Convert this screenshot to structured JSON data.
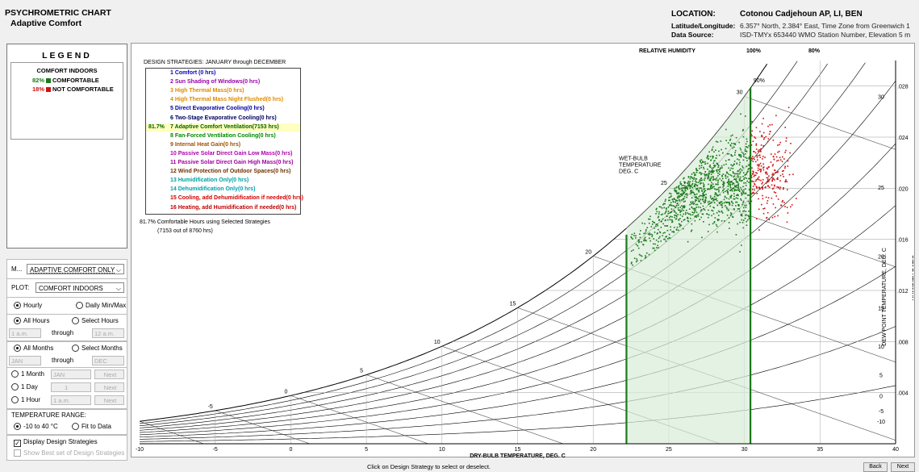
{
  "header": {
    "title": "PSYCHROMETRIC CHART",
    "subtitle": "Adaptive Comfort",
    "location_label": "LOCATION:",
    "location_value": "Cotonou Cadjehoun AP, LI, BEN",
    "latlon_label": "Latitude/Longitude:",
    "latlon_value": "6.357° North, 2.384° East, Time Zone from Greenwich 1",
    "source_label": "Data Source:",
    "source_value": "ISD-TMYx   653440 WMO Station Number, Elevation 5 m"
  },
  "legend": {
    "title": "LEGEND",
    "plot_title": "COMFORT INDOORS",
    "comfortable_pct": "82%",
    "comfortable_label": "COMFORTABLE",
    "not_comfortable_pct": "18%",
    "not_comfortable_label": "NOT COMFORTABLE",
    "colors": {
      "comfortable": "#1a7a1a",
      "not_comfortable": "#d01010"
    }
  },
  "controls": {
    "mode_label": "M...",
    "mode_value": "ADAPTIVE COMFORT ONLY",
    "plot_label": "PLOT:",
    "plot_value": "COMFORT INDOORS",
    "hourly": "Hourly",
    "daily": "Daily Min/Max",
    "all_hours": "All Hours",
    "select_hours": "Select Hours",
    "hour_from": "1 a.m.",
    "through": "through",
    "hour_to": "12 a.m.",
    "all_months": "All Months",
    "select_months": "Select Months",
    "month_from": "JAN",
    "month_to": "DEC",
    "one_month": "1 Month",
    "one_month_value": "JAN",
    "one_day": "1 Day",
    "one_day_value": "1",
    "one_hour": "1 Hour",
    "one_hour_value": "1 a.m.",
    "next": "Next",
    "temp_range_label": "TEMPERATURE RANGE:",
    "temp_range_value": "-10 to 40 °C",
    "fit_to_data": "Fit to Data",
    "display_strategies": "Display Design Strategies",
    "show_best": "Show Best set of Design Strategies"
  },
  "strategies": {
    "header": "DESIGN STRATEGIES:  JANUARY through DECEMBER",
    "items": [
      {
        "label": "1 Comfort (0 hrs)",
        "color": "#0000c0",
        "pct": ""
      },
      {
        "label": "2 Sun Shading of Windows(0 hrs)",
        "color": "#9900aa",
        "pct": ""
      },
      {
        "label": "3 High Thermal Mass(0 hrs)",
        "color": "#e08a00",
        "pct": ""
      },
      {
        "label": "4 High Thermal Mass Night Flushed(0 hrs)",
        "color": "#e08a00",
        "pct": ""
      },
      {
        "label": "5 Direct Evaporative Cooling(0 hrs)",
        "color": "#0000a0",
        "pct": ""
      },
      {
        "label": "6 Two-Stage Evaporative Cooling(0 hrs)",
        "color": "#000060",
        "pct": ""
      },
      {
        "label": "7 Adaptive Comfort Ventilation(7153 hrs)",
        "color": "#006000",
        "pct": "81.7%"
      },
      {
        "label": "8 Fan-Forced Ventilation Cooling(0 hrs)",
        "color": "#008800",
        "pct": ""
      },
      {
        "label": "9 Internal Heat Gain(0 hrs)",
        "color": "#a05000",
        "pct": ""
      },
      {
        "label": "10 Passive Solar Direct Gain Low Mass(0 hrs)",
        "color": "#b000b0",
        "pct": ""
      },
      {
        "label": "11 Passive Solar Direct Gain High Mass(0 hrs)",
        "color": "#a000a0",
        "pct": ""
      },
      {
        "label": "12 Wind Protection of Outdoor Spaces(0 hrs)",
        "color": "#703000",
        "pct": ""
      },
      {
        "label": "13 Humidification Only(0 hrs)",
        "color": "#00a0a0",
        "pct": ""
      },
      {
        "label": "14 Dehumidification Only(0 hrs)",
        "color": "#00a0b0",
        "pct": ""
      },
      {
        "label": "15 Cooling, add Dehumidification if needed(0 hrs)",
        "color": "#d00000",
        "pct": ""
      },
      {
        "label": "16 Heating, add Humidification if needed(0 hrs)",
        "color": "#c00000",
        "pct": ""
      }
    ],
    "summary1": "81.7%  Comfortable Hours using Selected Strategies",
    "summary2": "(7153 out of 8760 hrs)"
  },
  "chart_data": {
    "type": "scatter",
    "x_axis_label": "DRY-BULB TEMPERATURE, DEG. C",
    "y_axis_label": "HUMIDITY RATIO",
    "dewpoint_label": "DEW POINT TEMPERATURE, DEG. C",
    "wetbulb_label": "WET-BULB\nTEMPERATURE\nDEG. C",
    "rh_header": "RELATIVE HUMIDITY",
    "rh_labels": [
      "100%",
      "80%",
      "90%"
    ],
    "x_ticks": [
      "-10",
      "-5",
      "0",
      "5",
      "10",
      "15",
      "20",
      "25",
      "30",
      "35",
      "40"
    ],
    "y_ticks": [
      ".004",
      ".008",
      ".012",
      ".016",
      ".020",
      ".024",
      ".028"
    ],
    "dewpoint_ticks": [
      "30",
      "25",
      "20",
      "15",
      "10",
      "5",
      "0",
      "-5",
      "-10"
    ],
    "wetbulb_ticks": [
      "-5",
      "0",
      "5",
      "10",
      "15",
      "20",
      "25",
      "30"
    ],
    "xlim": [
      -10,
      40
    ],
    "ylim": [
      0,
      0.03
    ],
    "comfort_zone_db": [
      22.2,
      30.4
    ],
    "series": [
      {
        "name": "COMFORTABLE",
        "center_db": 27.5,
        "center_w": 0.0205,
        "count": 1100,
        "color": "#1a7a1a"
      },
      {
        "name": "NOT COMFORTABLE",
        "center_db": 31.0,
        "center_w": 0.0213,
        "count": 260,
        "color": "#d01010"
      }
    ]
  },
  "footer": {
    "hint": "Click on Design Strategy to select or deselect.",
    "back": "Back",
    "next": "Next"
  }
}
